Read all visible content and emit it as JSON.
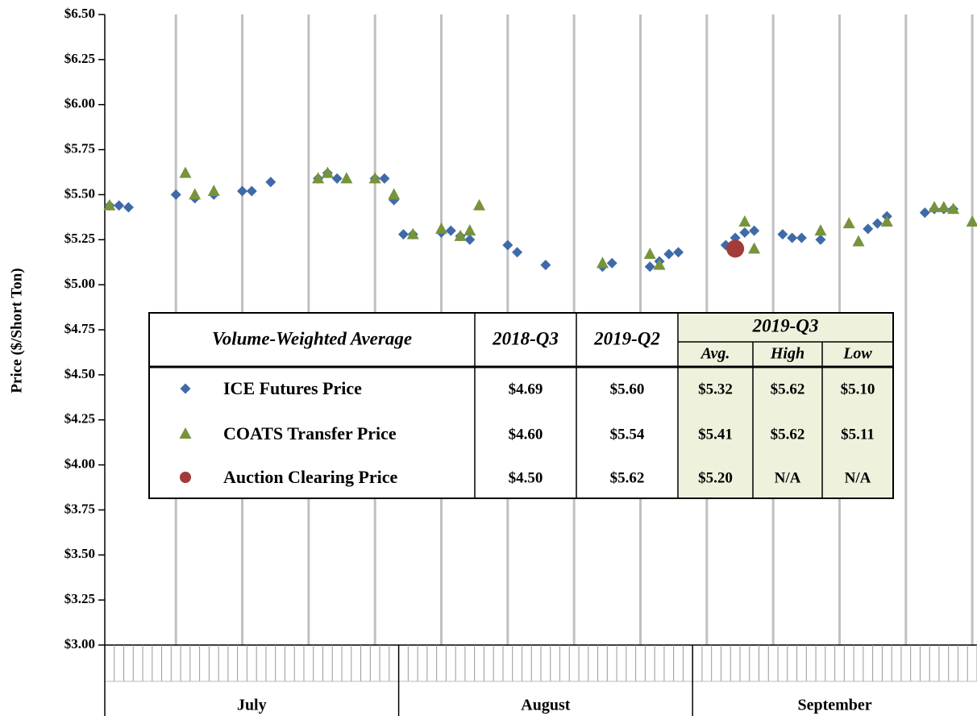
{
  "chart_data": {
    "type": "scatter",
    "y_label": "Price ($/Short Ton)",
    "categories": [
      null,
      null,
      null,
      null,
      null,
      null,
      null,
      null,
      null,
      null,
      null,
      null,
      null,
      null,
      null,
      null,
      null,
      null,
      null,
      null,
      null,
      null,
      null,
      null,
      null,
      null,
      null,
      null,
      null,
      null,
      null,
      null,
      null,
      null,
      null,
      null,
      null,
      null,
      null,
      null,
      null,
      null,
      null,
      null,
      null,
      null,
      null,
      null,
      null,
      null,
      null,
      null,
      null,
      null,
      null,
      null,
      null,
      null,
      null,
      null,
      null,
      null,
      null,
      null,
      null,
      null,
      null,
      null,
      null,
      null,
      null,
      null,
      null,
      null,
      null,
      null,
      null,
      null,
      null,
      null,
      null,
      null,
      null,
      null,
      null,
      null,
      null,
      null,
      null,
      null,
      null,
      null
    ],
    "month_groups": [
      {
        "label": "July",
        "days": 31
      },
      {
        "label": "August",
        "days": 31
      },
      {
        "label": "September",
        "days": 30
      }
    ],
    "series": [
      {
        "name": "ICE Futures Price",
        "color": "#3f6aa8",
        "marker": "diamond",
        "values": [
          5.44,
          5.44,
          5.43,
          null,
          null,
          null,
          null,
          5.5,
          null,
          5.48,
          null,
          5.5,
          null,
          null,
          5.52,
          5.52,
          null,
          5.57,
          null,
          null,
          null,
          null,
          5.59,
          5.62,
          5.59,
          null,
          null,
          null,
          5.59,
          5.59,
          5.47,
          5.28,
          5.28,
          null,
          null,
          5.29,
          5.3,
          5.27,
          5.25,
          null,
          null,
          null,
          5.22,
          5.18,
          null,
          null,
          5.11,
          null,
          null,
          null,
          null,
          null,
          5.1,
          5.12,
          null,
          null,
          null,
          5.1,
          5.13,
          5.17,
          5.18,
          null,
          null,
          null,
          null,
          5.22,
          5.26,
          5.29,
          5.3,
          null,
          null,
          5.28,
          5.26,
          5.26,
          null,
          5.25,
          null,
          null,
          null,
          null,
          5.31,
          5.34,
          5.38,
          null,
          null,
          null,
          5.4,
          5.42,
          5.42,
          5.42,
          null,
          null
        ]
      },
      {
        "name": "COATS Transfer Price",
        "color": "#77933c",
        "marker": "triangle",
        "values": [
          5.44,
          null,
          null,
          null,
          null,
          null,
          null,
          null,
          5.62,
          5.5,
          null,
          5.52,
          null,
          null,
          null,
          null,
          null,
          null,
          null,
          null,
          null,
          null,
          5.59,
          5.62,
          null,
          5.59,
          null,
          null,
          5.59,
          null,
          5.5,
          null,
          5.28,
          null,
          null,
          5.31,
          null,
          5.27,
          5.3,
          5.44,
          null,
          null,
          null,
          null,
          null,
          null,
          null,
          null,
          null,
          null,
          null,
          null,
          5.12,
          null,
          null,
          null,
          null,
          5.17,
          5.11,
          null,
          null,
          null,
          null,
          null,
          null,
          null,
          null,
          5.35,
          5.2,
          null,
          null,
          null,
          null,
          null,
          null,
          5.3,
          null,
          null,
          5.34,
          5.24,
          null,
          null,
          5.35,
          null,
          null,
          null,
          null,
          5.43,
          5.43,
          5.42,
          null,
          5.35
        ]
      },
      {
        "name": "Auction Clearing Price",
        "color": "#a23b3a",
        "marker": "circle",
        "values": [
          null,
          null,
          null,
          null,
          null,
          null,
          null,
          null,
          null,
          null,
          null,
          null,
          null,
          null,
          null,
          null,
          null,
          null,
          null,
          null,
          null,
          null,
          null,
          null,
          null,
          null,
          null,
          null,
          null,
          null,
          null,
          null,
          null,
          null,
          null,
          null,
          null,
          null,
          null,
          null,
          null,
          null,
          null,
          null,
          null,
          null,
          null,
          null,
          null,
          null,
          null,
          null,
          null,
          null,
          null,
          null,
          null,
          null,
          null,
          null,
          null,
          null,
          null,
          null,
          null,
          null,
          5.2,
          null,
          null,
          null,
          null,
          null,
          null,
          null,
          null,
          null,
          null,
          null,
          null,
          null,
          null,
          null,
          null,
          null,
          null,
          null,
          null,
          null,
          null,
          null,
          null,
          null
        ]
      }
    ],
    "ylim": [
      3.0,
      6.5
    ],
    "yticks": [
      {
        "value": 3.0,
        "label": "$3.00"
      },
      {
        "value": 3.25,
        "label": "$3.25"
      },
      {
        "value": 3.5,
        "label": "$3.50"
      },
      {
        "value": 3.75,
        "label": "$3.75"
      },
      {
        "value": 4.0,
        "label": "$4.00"
      },
      {
        "value": 4.25,
        "label": "$4.25"
      },
      {
        "value": 4.5,
        "label": "$4.50"
      },
      {
        "value": 4.75,
        "label": "$4.75"
      },
      {
        "value": 5.0,
        "label": "$5.00"
      },
      {
        "value": 5.25,
        "label": "$5.25"
      },
      {
        "value": 5.5,
        "label": "$5.50"
      },
      {
        "value": 5.75,
        "label": "$5.75"
      },
      {
        "value": 6.0,
        "label": "$6.00"
      },
      {
        "value": 6.25,
        "label": "$6.25"
      },
      {
        "value": 6.5,
        "label": "$6.50"
      }
    ]
  },
  "table": {
    "header": {
      "label": "Volume-Weighted Average",
      "cols": [
        "2018-Q3",
        "2019-Q2"
      ],
      "group": "2019-Q3",
      "subcols": [
        "Avg.",
        "High",
        "Low"
      ]
    },
    "rows": [
      [
        "$4.69",
        "$5.60",
        "$5.32",
        "$5.62",
        "$5.10"
      ],
      [
        "$4.60",
        "$5.54",
        "$5.41",
        "$5.62",
        "$5.11"
      ],
      [
        "$4.50",
        "$5.62",
        "$5.20",
        "N/A",
        "N/A"
      ]
    ]
  }
}
